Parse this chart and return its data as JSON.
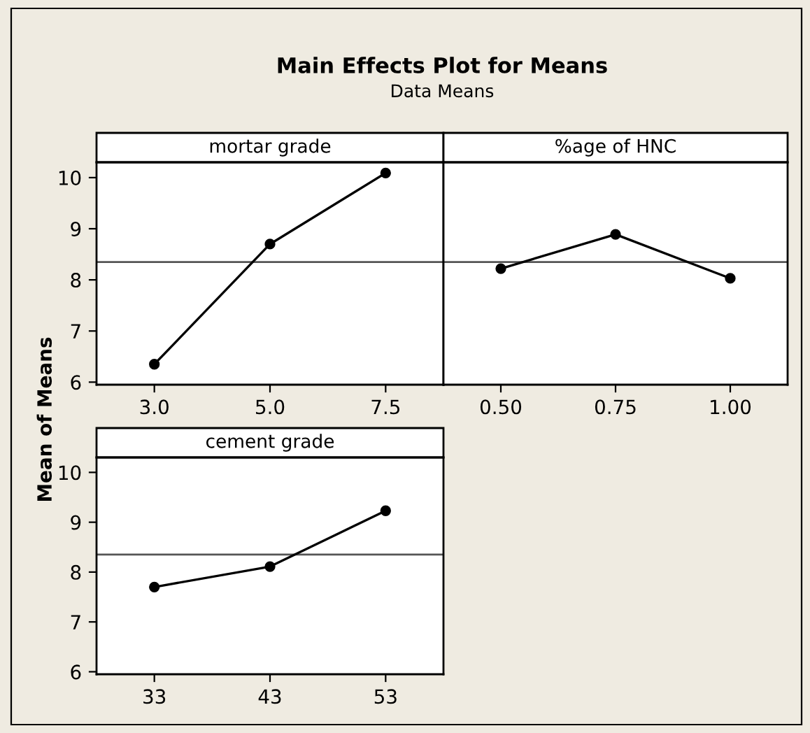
{
  "chart_data": [
    {
      "type": "line",
      "title": "mortar grade",
      "annotations": [
        "Main Effects Plot for Means",
        "Data Means"
      ],
      "ylabel": "Mean of Means",
      "categories": [
        "3.0",
        "5.0",
        "7.5"
      ],
      "values": [
        6.35,
        8.7,
        10.09
      ],
      "color": "#000000",
      "marker": "circle",
      "line_style": "solid",
      "ylim": [
        5.95,
        10.3
      ],
      "yticks": [
        6,
        7,
        8,
        9,
        10
      ],
      "grid": false,
      "ref_lines": [
        {
          "axis": "y",
          "value": 8.35,
          "color": "#555555"
        }
      ]
    },
    {
      "type": "line",
      "title": "%age of HNC",
      "categories": [
        "0.50",
        "0.75",
        "1.00"
      ],
      "values": [
        8.22,
        8.89,
        8.03
      ],
      "color": "#000000",
      "marker": "circle",
      "line_style": "solid",
      "ylim": [
        5.95,
        10.3
      ],
      "yticks": [
        6,
        7,
        8,
        9,
        10
      ],
      "tick_labels": "x",
      "grid": false,
      "ref_lines": [
        {
          "axis": "y",
          "value": 8.35,
          "color": "#555555"
        }
      ]
    },
    {
      "type": "line",
      "title": "cement grade",
      "categories": [
        "33",
        "43",
        "53"
      ],
      "values": [
        7.7,
        8.11,
        9.23
      ],
      "color": "#000000",
      "marker": "circle",
      "line_style": "solid",
      "ylim": [
        5.95,
        10.3
      ],
      "yticks": [
        6,
        7,
        8,
        9,
        10
      ],
      "grid": false,
      "ref_lines": [
        {
          "axis": "y",
          "value": 8.35,
          "color": "#555555"
        }
      ]
    }
  ]
}
